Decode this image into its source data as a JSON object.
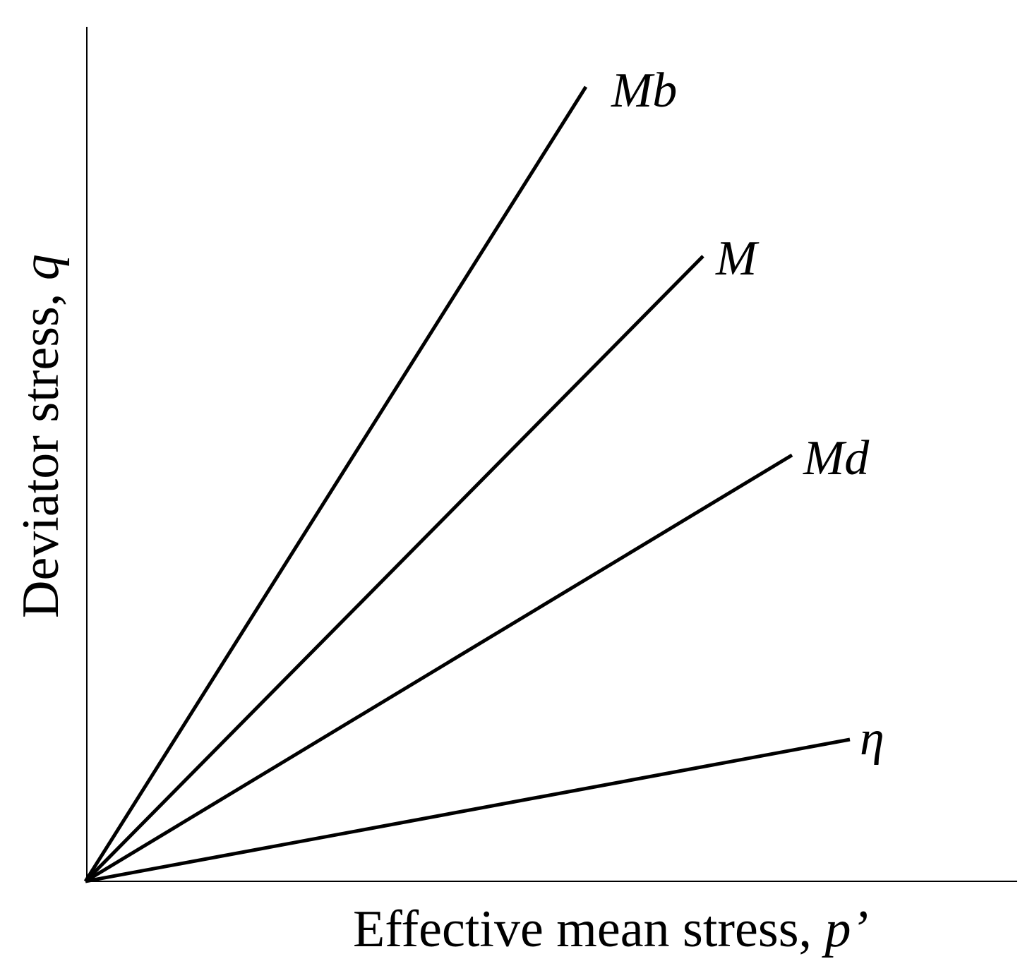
{
  "diagram": {
    "x_axis_label": "Effective mean stress, ",
    "x_axis_symbol": "p’",
    "y_axis_label": "Deviator stress, ",
    "y_axis_symbol": "q",
    "lines": [
      {
        "id": "mb",
        "label": "Mb"
      },
      {
        "id": "m",
        "label": "M"
      },
      {
        "id": "md",
        "label": "Md"
      },
      {
        "id": "eta",
        "label": "η"
      }
    ]
  }
}
